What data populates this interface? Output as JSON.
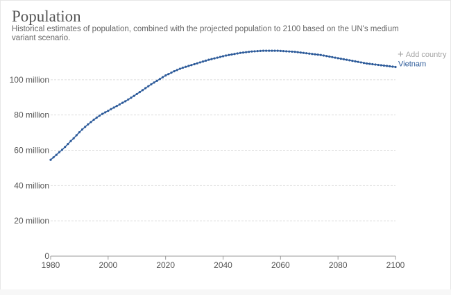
{
  "header": {
    "title": "Population",
    "subtitle": "Historical estimates of population, combined with the projected population to 2100 based on the UN's medium variant scenario."
  },
  "controls": {
    "add_country_label": "Add country",
    "add_icon": "plus-icon"
  },
  "colors": {
    "series": "#2d5b9a",
    "grid": "#dddddd",
    "axis": "#999999",
    "text": "#555555"
  },
  "chart_data": {
    "type": "line",
    "title": "Population",
    "subtitle": "Historical estimates of population, combined with the projected population to 2100 based on the UN's medium variant scenario.",
    "xlabel": "",
    "ylabel": "",
    "xlim": [
      1980,
      2100
    ],
    "ylim": [
      0,
      120000000
    ],
    "x_ticks": [
      1980,
      2000,
      2020,
      2040,
      2060,
      2080,
      2100
    ],
    "x_tick_labels": [
      "1980",
      "2000",
      "2020",
      "2040",
      "2060",
      "2080",
      "2100"
    ],
    "y_ticks": [
      0,
      20000000,
      40000000,
      60000000,
      80000000,
      100000000
    ],
    "y_tick_labels": [
      "0",
      "20 million",
      "40 million",
      "60 million",
      "80 million",
      "100 million"
    ],
    "grid": true,
    "series": [
      {
        "name": "Vietnam",
        "color": "#2d5b9a",
        "x": [
          1980,
          1981,
          1982,
          1983,
          1984,
          1985,
          1986,
          1987,
          1988,
          1989,
          1990,
          1991,
          1992,
          1993,
          1994,
          1995,
          1996,
          1997,
          1998,
          1999,
          2000,
          2001,
          2002,
          2003,
          2004,
          2005,
          2006,
          2007,
          2008,
          2009,
          2010,
          2011,
          2012,
          2013,
          2014,
          2015,
          2016,
          2017,
          2018,
          2019,
          2020,
          2021,
          2022,
          2023,
          2024,
          2025,
          2026,
          2027,
          2028,
          2029,
          2030,
          2031,
          2032,
          2033,
          2034,
          2035,
          2036,
          2037,
          2038,
          2039,
          2040,
          2041,
          2042,
          2043,
          2044,
          2045,
          2046,
          2047,
          2048,
          2049,
          2050,
          2051,
          2052,
          2053,
          2054,
          2055,
          2056,
          2057,
          2058,
          2059,
          2060,
          2061,
          2062,
          2063,
          2064,
          2065,
          2066,
          2067,
          2068,
          2069,
          2070,
          2071,
          2072,
          2073,
          2074,
          2075,
          2076,
          2077,
          2078,
          2079,
          2080,
          2081,
          2082,
          2083,
          2084,
          2085,
          2086,
          2087,
          2088,
          2089,
          2090,
          2091,
          2092,
          2093,
          2094,
          2095,
          2096,
          2097,
          2098,
          2099,
          2100
        ],
        "values": [
          54600000,
          56000000,
          57400000,
          58900000,
          60300000,
          61900000,
          63500000,
          65200000,
          66800000,
          68500000,
          70200000,
          71800000,
          73300000,
          74700000,
          76000000,
          77300000,
          78500000,
          79600000,
          80600000,
          81500000,
          82400000,
          83300000,
          84200000,
          85100000,
          86000000,
          86900000,
          87800000,
          88800000,
          89800000,
          90800000,
          91900000,
          93000000,
          94100000,
          95200000,
          96300000,
          97400000,
          98400000,
          99400000,
          100400000,
          101400000,
          102400000,
          103200000,
          104000000,
          104800000,
          105500000,
          106200000,
          106800000,
          107300000,
          107800000,
          108300000,
          108800000,
          109300000,
          109800000,
          110300000,
          110800000,
          111300000,
          111700000,
          112100000,
          112500000,
          112900000,
          113300000,
          113700000,
          114000000,
          114300000,
          114600000,
          114900000,
          115200000,
          115400000,
          115600000,
          115800000,
          116000000,
          116100000,
          116200000,
          116300000,
          116400000,
          116400000,
          116400000,
          116400000,
          116400000,
          116400000,
          116300000,
          116200000,
          116100000,
          116000000,
          115900000,
          115800000,
          115600000,
          115400000,
          115200000,
          115000000,
          114800000,
          114600000,
          114400000,
          114200000,
          114000000,
          113700000,
          113400000,
          113100000,
          112800000,
          112500000,
          112200000,
          111900000,
          111600000,
          111300000,
          111000000,
          110700000,
          110400000,
          110100000,
          109800000,
          109500000,
          109200000,
          109000000,
          108800000,
          108600000,
          108400000,
          108200000,
          108000000,
          107800000,
          107600000,
          107400000,
          107200000
        ]
      }
    ],
    "end_label": "Vietnam"
  }
}
